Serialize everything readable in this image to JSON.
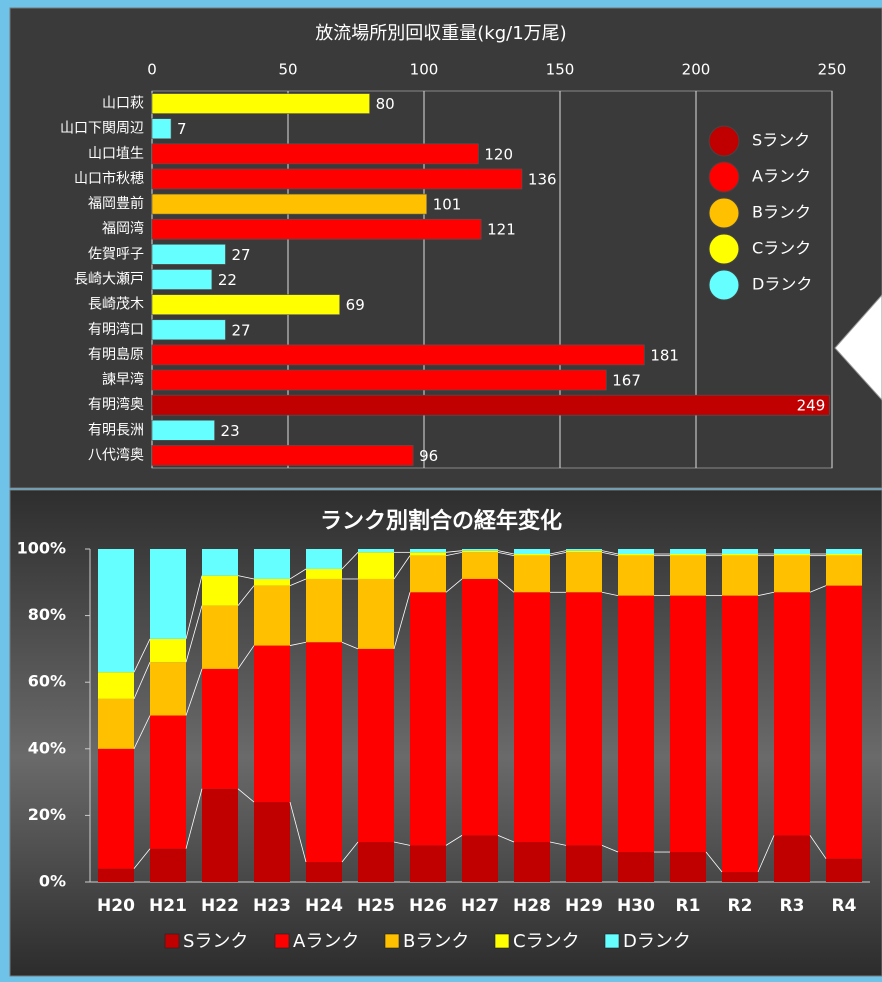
{
  "chart_data": [
    {
      "type": "barh",
      "title": "放流場所別回収重量(kg/1万尾)",
      "categories": [
        "山口萩",
        "山口下関周辺",
        "山口埴生",
        "山口市秋穂",
        "福岡豊前",
        "福岡湾",
        "佐賀呼子",
        "長崎大瀬戸",
        "長崎茂木",
        "有明湾口",
        "有明島原",
        "諫早湾",
        "有明湾奥",
        "有明長洲",
        "八代湾奥"
      ],
      "values": [
        80,
        7,
        120,
        136,
        101,
        121,
        27,
        22,
        69,
        27,
        181,
        167,
        249,
        23,
        96
      ],
      "colors": [
        "#ffff00",
        "#66ffff",
        "#ff0000",
        "#ff0000",
        "#ffc000",
        "#ff0000",
        "#66ffff",
        "#66ffff",
        "#ffff00",
        "#66ffff",
        "#ff0000",
        "#ff0000",
        "#c00000",
        "#66ffff",
        "#ff0000"
      ],
      "xlim": [
        0,
        250
      ],
      "xticks": [
        0,
        50,
        100,
        150,
        200,
        250
      ],
      "grid": true,
      "legend": [
        {
          "name": "Sランク",
          "color": "#c00000"
        },
        {
          "name": "Aランク",
          "color": "#ff0000"
        },
        {
          "name": "Bランク",
          "color": "#ffc000"
        },
        {
          "name": "Cランク",
          "color": "#ffff00"
        },
        {
          "name": "Dランク",
          "color": "#66ffff"
        }
      ]
    },
    {
      "type": "stacked_bar",
      "title": "ランク別割合の経年変化",
      "categories": [
        "H20",
        "H21",
        "H22",
        "H23",
        "H24",
        "H25",
        "H26",
        "H27",
        "H28",
        "H29",
        "H30",
        "R1",
        "R2",
        "R3",
        "R4"
      ],
      "series": [
        {
          "name": "Sランク",
          "color": "#c00000",
          "values": [
            4,
            10,
            28,
            24,
            6,
            12,
            11,
            14,
            12,
            11,
            9,
            9,
            3,
            14,
            7
          ]
        },
        {
          "name": "Aランク",
          "color": "#ff0000",
          "values": [
            36,
            40,
            36,
            47,
            66,
            58,
            76,
            77,
            75,
            76,
            77,
            77,
            83,
            73,
            82
          ]
        },
        {
          "name": "Bランク",
          "color": "#ffc000",
          "values": [
            15,
            16,
            19,
            18,
            19,
            21,
            11,
            8,
            11,
            12,
            12,
            12,
            12,
            11,
            9
          ]
        },
        {
          "name": "Cランク",
          "color": "#ffff00",
          "values": [
            8,
            7,
            9,
            2,
            3,
            8,
            1,
            0.5,
            0.5,
            0.5,
            0.5,
            0.5,
            0.5,
            0.5,
            0.5
          ]
        },
        {
          "name": "Dランク",
          "color": "#66ffff",
          "values": [
            37,
            27,
            8,
            9,
            6,
            1,
            1,
            0.5,
            1.5,
            0.5,
            1.5,
            1.5,
            1.5,
            1.5,
            1.5
          ]
        }
      ],
      "ylim": [
        0,
        100
      ],
      "yticks": [
        {
          "value": 0,
          "label": "0%"
        },
        {
          "value": 20,
          "label": "20%"
        },
        {
          "value": 40,
          "label": "40%"
        },
        {
          "value": 60,
          "label": "60%"
        },
        {
          "value": 80,
          "label": "80%"
        },
        {
          "value": 100,
          "label": "100%"
        }
      ],
      "legend_position": "bottom"
    }
  ]
}
